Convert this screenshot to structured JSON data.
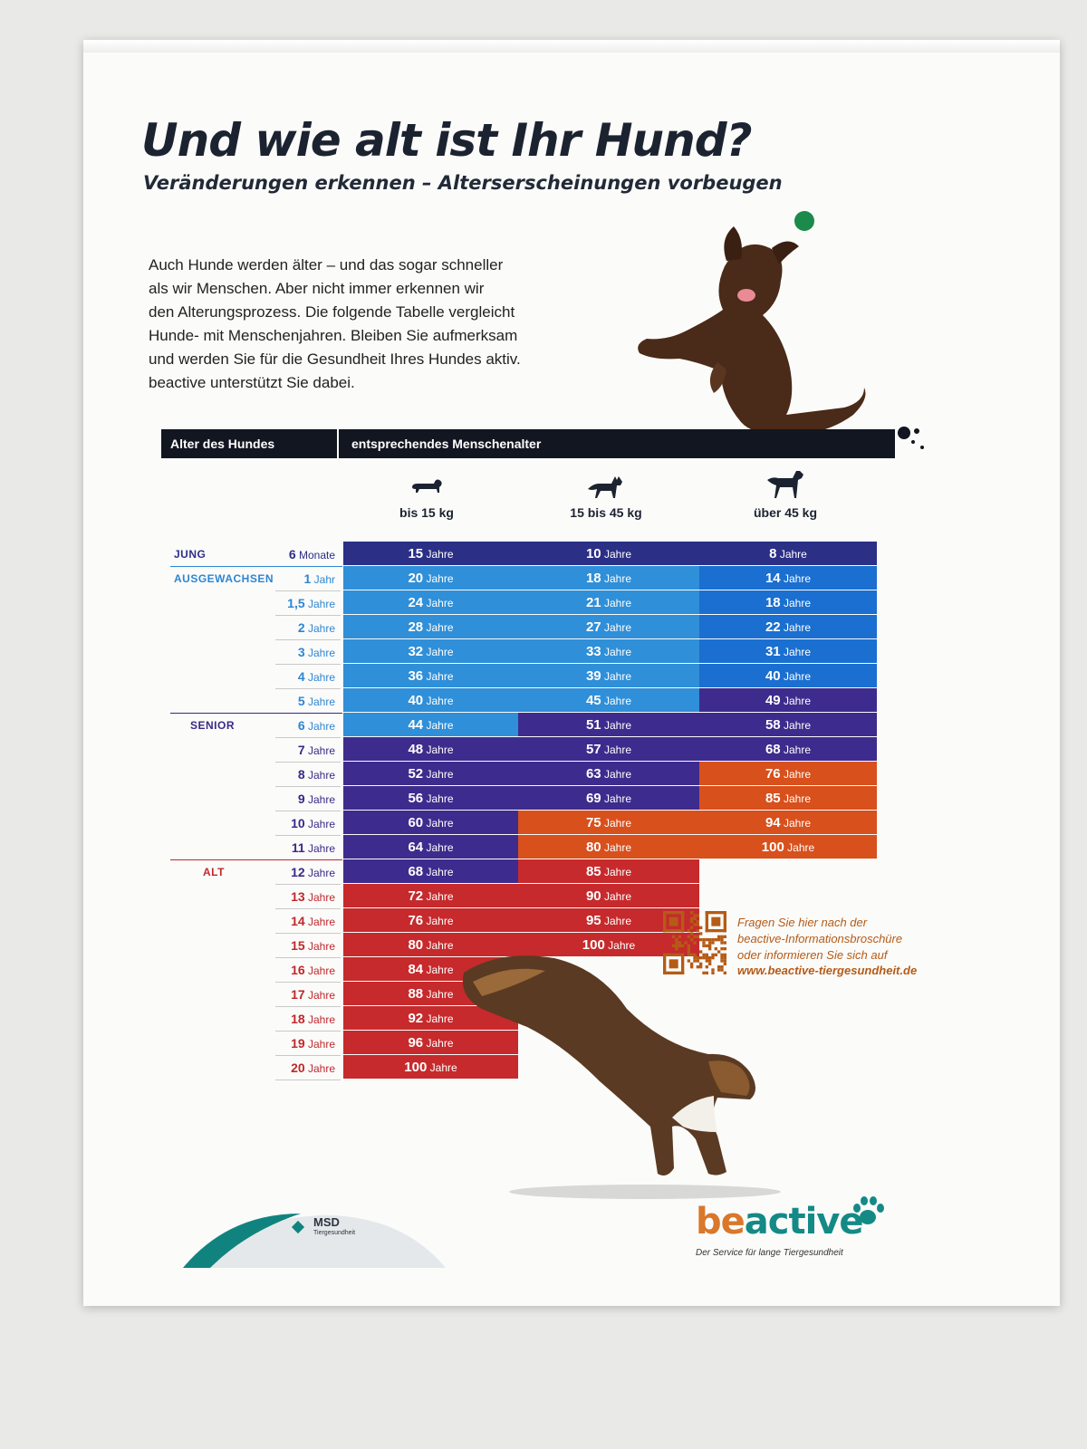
{
  "title": "Und wie alt ist Ihr Hund?",
  "subtitle": "Veränderungen erkennen – Alterserscheinungen vorbeugen",
  "intro_lines": [
    "Auch Hunde werden älter – und das sogar schneller",
    "als wir Menschen. Aber nicht immer erkennen wir",
    "den Alterungsprozess. Die folgende Tabelle vergleicht",
    "Hunde- mit Menschenjahren. Bleiben Sie aufmerksam",
    "und werden Sie für die Gesundheit Ihres Hundes aktiv.",
    "beactive unterstützt Sie dabei."
  ],
  "table_header": {
    "left": "Alter des Hundes",
    "right": "entsprechendes Menschenalter"
  },
  "columns": [
    {
      "label": "bis 15 kg",
      "icon": "small-dog-icon"
    },
    {
      "label": "15 bis 45 kg",
      "icon": "medium-dog-icon"
    },
    {
      "label": "über 45 kg",
      "icon": "large-dog-icon"
    }
  ],
  "stages": [
    {
      "label": "JUNG",
      "color": "#2b2f86",
      "start_row": 0
    },
    {
      "label": "AUSGEWACHSEN",
      "color": "#2e86d3",
      "start_row": 1
    },
    {
      "label": "SENIOR",
      "color": "#3a2a86",
      "start_row": 7
    },
    {
      "label": "ALT",
      "color": "#c0282c",
      "start_row": 13
    }
  ],
  "unit_years": "Jahre",
  "rows": [
    {
      "age_num": "6",
      "age_unit": "Monate",
      "stage": 0,
      "small": "15",
      "medium": "10",
      "large": "8"
    },
    {
      "age_num": "1",
      "age_unit": "Jahr",
      "stage": 1,
      "small": "20",
      "medium": "18",
      "large": "14"
    },
    {
      "age_num": "1,5",
      "age_unit": "Jahre",
      "stage": 1,
      "small": "24",
      "medium": "21",
      "large": "18"
    },
    {
      "age_num": "2",
      "age_unit": "Jahre",
      "stage": 1,
      "small": "28",
      "medium": "27",
      "large": "22"
    },
    {
      "age_num": "3",
      "age_unit": "Jahre",
      "stage": 1,
      "small": "32",
      "medium": "33",
      "large": "31"
    },
    {
      "age_num": "4",
      "age_unit": "Jahre",
      "stage": 1,
      "small": "36",
      "medium": "39",
      "large": "40"
    },
    {
      "age_num": "5",
      "age_unit": "Jahre",
      "stage": 1,
      "small": "40",
      "medium": "45",
      "large": "49"
    },
    {
      "age_num": "6",
      "age_unit": "Jahre",
      "stage": 1,
      "small": "44",
      "medium": "51",
      "large": "58"
    },
    {
      "age_num": "7",
      "age_unit": "Jahre",
      "stage": 2,
      "small": "48",
      "medium": "57",
      "large": "68"
    },
    {
      "age_num": "8",
      "age_unit": "Jahre",
      "stage": 2,
      "small": "52",
      "medium": "63",
      "large": "76"
    },
    {
      "age_num": "9",
      "age_unit": "Jahre",
      "stage": 2,
      "small": "56",
      "medium": "69",
      "large": "85"
    },
    {
      "age_num": "10",
      "age_unit": "Jahre",
      "stage": 2,
      "small": "60",
      "medium": "75",
      "large": "94"
    },
    {
      "age_num": "11",
      "age_unit": "Jahre",
      "stage": 2,
      "small": "64",
      "medium": "80",
      "large": "100"
    },
    {
      "age_num": "12",
      "age_unit": "Jahre",
      "stage": 2,
      "small": "68",
      "medium": "85",
      "large": ""
    },
    {
      "age_num": "13",
      "age_unit": "Jahre",
      "stage": 3,
      "small": "72",
      "medium": "90",
      "large": ""
    },
    {
      "age_num": "14",
      "age_unit": "Jahre",
      "stage": 3,
      "small": "76",
      "medium": "95",
      "large": ""
    },
    {
      "age_num": "15",
      "age_unit": "Jahre",
      "stage": 3,
      "small": "80",
      "medium": "100",
      "large": ""
    },
    {
      "age_num": "16",
      "age_unit": "Jahre",
      "stage": 3,
      "small": "84",
      "medium": "",
      "large": ""
    },
    {
      "age_num": "17",
      "age_unit": "Jahre",
      "stage": 3,
      "small": "88",
      "medium": "",
      "large": ""
    },
    {
      "age_num": "18",
      "age_unit": "Jahre",
      "stage": 3,
      "small": "92",
      "medium": "",
      "large": ""
    },
    {
      "age_num": "19",
      "age_unit": "Jahre",
      "stage": 3,
      "small": "96",
      "medium": "",
      "large": ""
    },
    {
      "age_num": "20",
      "age_unit": "Jahre",
      "stage": 3,
      "small": "100",
      "medium": "",
      "large": ""
    }
  ],
  "cell_colors": {
    "young": "#2b2f86",
    "adult": "#2f8fd8",
    "adult_dark": "#1a6fd0",
    "senior": "#3d2c8d",
    "old_orange": "#d8501c",
    "old_red": "#c62a2c"
  },
  "cta": {
    "lines": [
      "Fragen Sie hier nach der",
      "beactive-Informationsbroschüre",
      "oder informieren Sie sich auf"
    ],
    "url": "www.beactive-tiergesundheit.de",
    "color": "#b55b16"
  },
  "logos": {
    "msd_name": "MSD",
    "msd_sub": "Tiergesundheit",
    "beactive_be": "be",
    "beactive_active": "active",
    "beactive_tagline": "Der Service für lange Tiergesundheit"
  }
}
